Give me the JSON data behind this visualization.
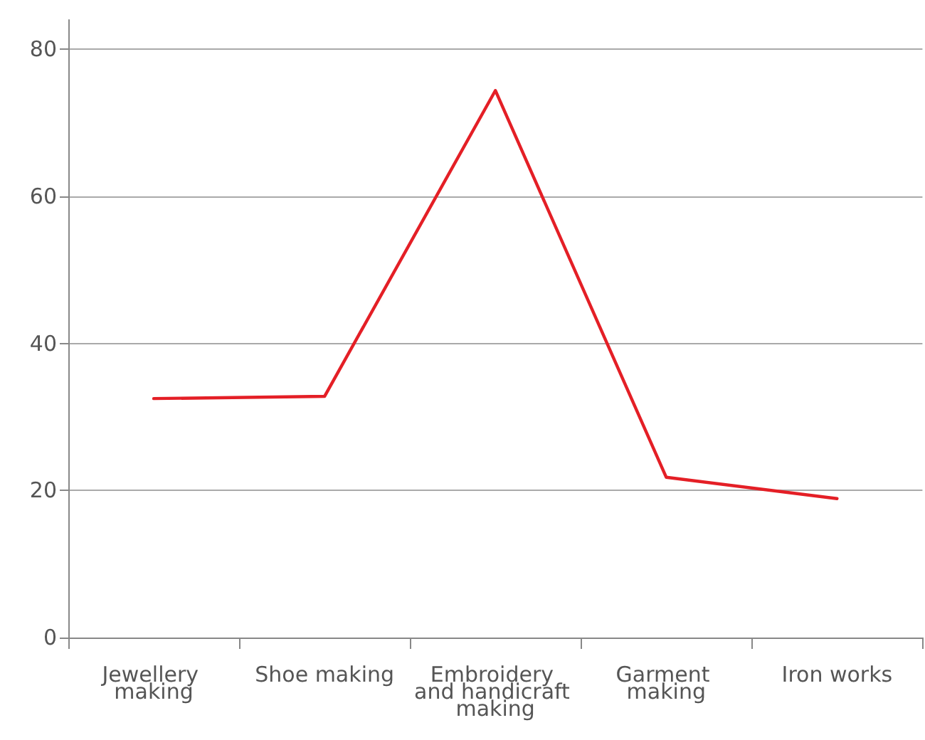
{
  "chart_data": {
    "type": "line",
    "categories": [
      "Jewellery making",
      "Shoe making",
      "Embroidery and handicraft making",
      "Garment making",
      "Iron works"
    ],
    "series": [
      {
        "color": "#e41f26",
        "values": [
          32.5,
          32.8,
          74.4,
          21.8,
          18.9
        ]
      }
    ],
    "ylim": [
      0,
      84
    ],
    "yticks": [
      0,
      20,
      40,
      60,
      80
    ],
    "grid": "y"
  }
}
